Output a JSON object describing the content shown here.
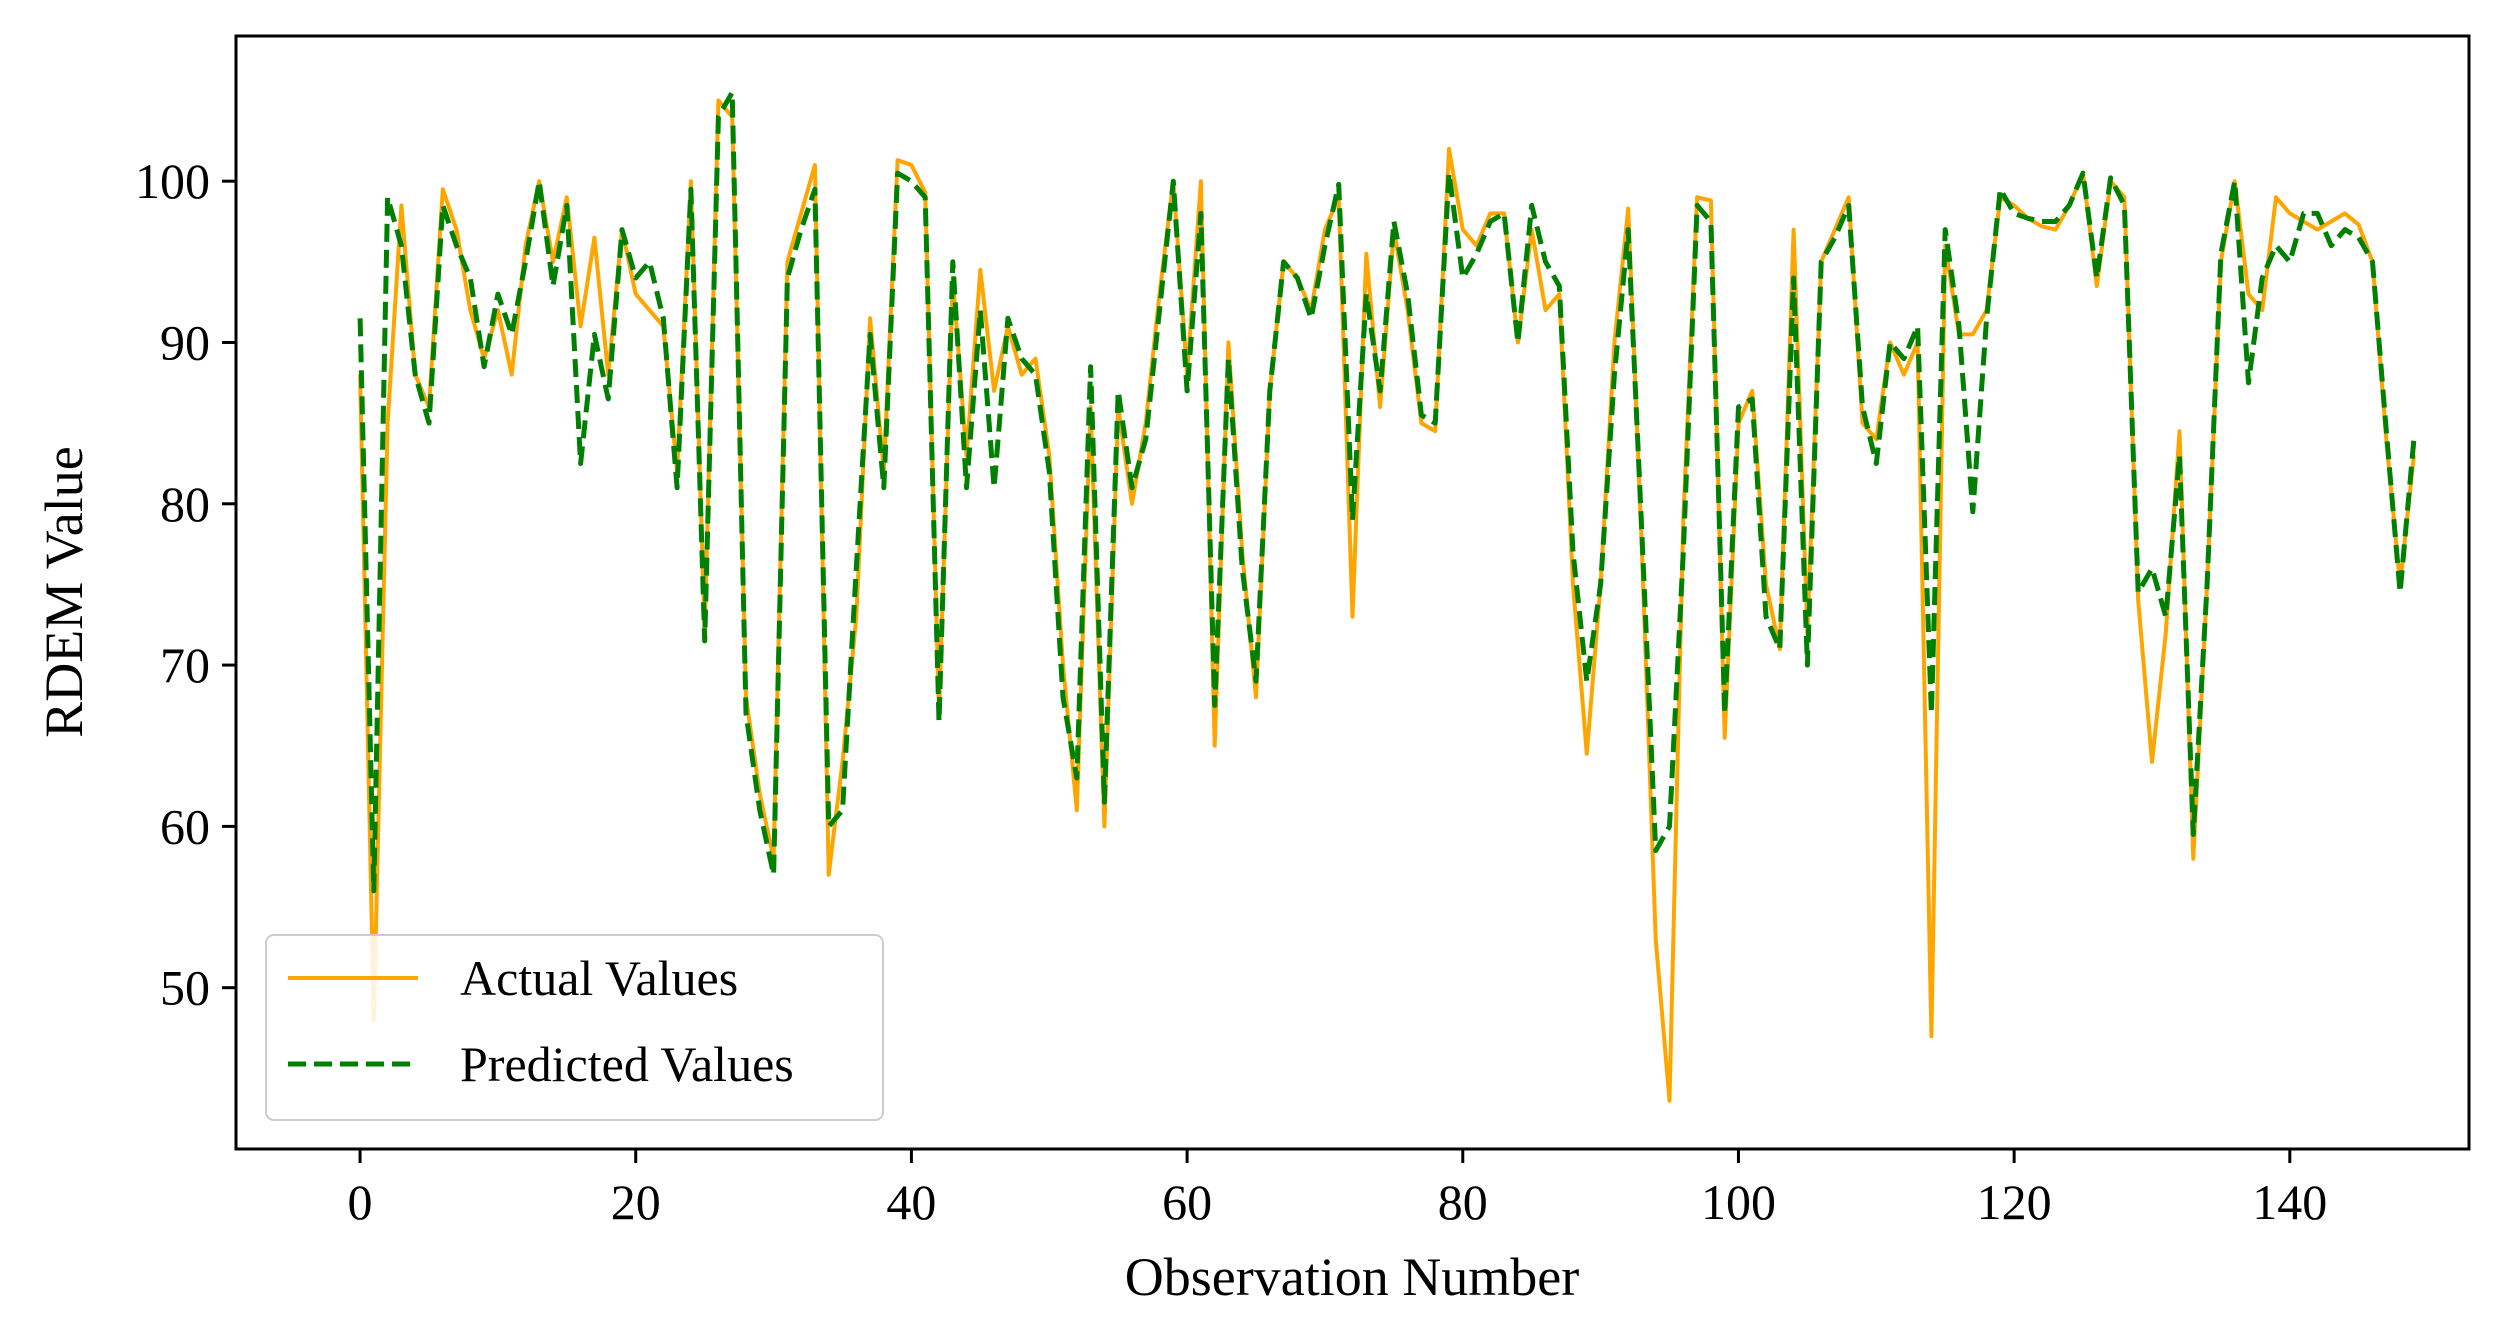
{
  "chart_data": {
    "type": "line",
    "title": "",
    "xlabel": "Observation Number",
    "ylabel": "RDEM Value",
    "xlim": [
      -9,
      153
    ],
    "ylim": [
      40,
      109
    ],
    "xticks": [
      0,
      20,
      40,
      60,
      80,
      100,
      120,
      140
    ],
    "yticks": [
      50,
      60,
      70,
      80,
      90,
      100
    ],
    "grid": false,
    "legend_position": "bottom-left",
    "series": [
      {
        "name": "Actual Values",
        "color": "#FFA500",
        "style": "solid",
        "values": [
          88,
          48,
          85,
          98.5,
          88,
          86,
          99.5,
          97,
          92,
          89,
          92,
          88,
          96,
          100,
          95,
          99,
          91,
          96.5,
          88,
          97,
          93,
          92,
          91,
          82,
          100,
          72,
          105,
          104,
          68,
          62,
          58,
          95,
          98,
          101,
          57,
          64,
          73,
          91.5,
          82,
          101.3,
          101,
          99.3,
          67,
          94,
          83,
          94.5,
          87,
          91,
          88,
          89,
          83,
          70,
          61,
          86,
          60,
          86,
          80,
          85,
          93,
          100,
          88,
          100,
          65,
          90,
          77,
          68,
          87,
          95,
          94,
          92,
          97,
          99,
          73,
          95.5,
          86,
          97,
          92,
          85,
          84.5,
          102,
          97,
          96,
          98,
          98,
          90,
          97,
          92,
          93,
          75,
          64.5,
          75,
          90,
          98.3,
          77,
          53,
          43,
          79,
          99,
          98.8,
          65.5,
          85,
          87,
          75,
          71,
          97,
          72,
          95,
          97,
          99,
          85,
          84,
          90,
          88,
          90,
          47,
          96,
          90.5,
          90.5,
          92,
          99,
          98.5,
          97.7,
          97.2,
          97,
          98.5,
          100.5,
          93.5,
          100,
          99,
          74,
          64,
          72,
          84.5,
          58,
          75,
          95,
          100,
          93,
          92,
          99,
          98,
          97.5,
          97,
          97.5,
          98,
          97.3,
          95,
          84,
          75,
          83
        ]
      },
      {
        "name": "Predicted Values",
        "color": "#008000",
        "style": "dashed",
        "values": [
          91.5,
          56,
          99,
          96,
          88,
          85,
          98.5,
          96,
          94,
          88.5,
          93,
          90.5,
          95,
          100,
          93.5,
          98.5,
          82.5,
          90.5,
          86.5,
          97,
          94,
          95,
          91.5,
          81,
          99.5,
          71.5,
          104,
          105.5,
          67,
          61,
          57,
          94,
          97,
          99.5,
          60,
          61,
          76,
          90.5,
          81,
          100.5,
          100,
          99,
          66.5,
          95,
          81,
          92,
          81,
          91.5,
          89,
          88,
          82,
          68,
          63,
          88.5,
          61.5,
          87,
          81,
          84,
          92,
          100,
          87,
          98,
          67.5,
          89,
          76,
          69,
          87,
          95,
          94,
          91.5,
          96,
          99.8,
          79,
          93,
          87,
          97.5,
          93,
          85.5,
          85,
          100.5,
          94,
          95.5,
          97.5,
          98,
          90,
          98.5,
          95,
          93.5,
          77,
          69,
          75,
          88,
          97,
          78,
          58.5,
          60,
          77,
          98.5,
          97.5,
          67,
          86,
          86.5,
          73,
          71,
          94,
          70,
          95,
          96.5,
          98.5,
          86,
          82.5,
          90,
          89,
          91,
          67,
          97,
          91,
          79.5,
          91.5,
          99.5,
          98,
          97.7,
          97.5,
          97.5,
          98.5,
          100.5,
          94,
          100.2,
          98.5,
          74.5,
          76,
          73,
          83,
          59.5,
          75,
          95.5,
          100,
          87.5,
          94,
          96,
          95,
          98,
          98,
          96,
          97,
          96.5,
          95,
          84.5,
          74.5,
          84
        ]
      }
    ]
  }
}
